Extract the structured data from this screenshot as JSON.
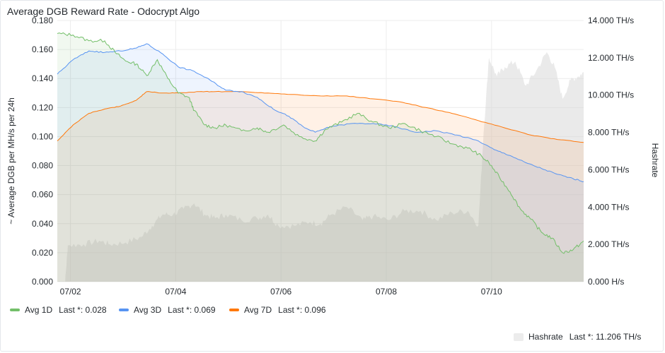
{
  "panel": {
    "title": "Average DGB Reward Rate - Odocrypt Algo"
  },
  "chart_data": {
    "type": "area",
    "title": "Average DGB Reward Rate - Odocrypt Algo",
    "ylabel": "~ Average DGB per MH/s per 24h",
    "y2label": "Hashrate",
    "ylim": [
      0,
      0.18
    ],
    "y2lim": [
      0,
      14
    ],
    "yticks": [
      "0.000",
      "0.020",
      "0.040",
      "0.060",
      "0.080",
      "0.100",
      "0.120",
      "0.140",
      "0.160",
      "0.180"
    ],
    "y2ticks": [
      "0.000 H/s",
      "2.000 TH/s",
      "4.000 TH/s",
      "6.000 TH/s",
      "8.000 TH/s",
      "10.000 TH/s",
      "12.000 TH/s",
      "14.000 TH/s"
    ],
    "xticks": [
      {
        "t": 0.25,
        "label": "07/02"
      },
      {
        "t": 2.25,
        "label": "07/04"
      },
      {
        "t": 4.25,
        "label": "07/06"
      },
      {
        "t": 6.25,
        "label": "07/08"
      },
      {
        "t": 8.25,
        "label": "07/10"
      }
    ],
    "xrange": [
      0,
      10.0
    ],
    "x_unit": "days from 07/01 18:00",
    "series": [
      {
        "name": "Avg 1D",
        "color": "#73bf69",
        "last_label": "Last *:",
        "last": "0.028",
        "points": [
          [
            0,
            0.171
          ],
          [
            0.3,
            0.17
          ],
          [
            0.6,
            0.166
          ],
          [
            0.9,
            0.166
          ],
          [
            1.1,
            0.158
          ],
          [
            1.3,
            0.152
          ],
          [
            1.5,
            0.15
          ],
          [
            1.7,
            0.142
          ],
          [
            1.9,
            0.153
          ],
          [
            2.1,
            0.14
          ],
          [
            2.3,
            0.13
          ],
          [
            2.5,
            0.127
          ],
          [
            2.6,
            0.118
          ],
          [
            2.8,
            0.108
          ],
          [
            3.0,
            0.106
          ],
          [
            3.2,
            0.108
          ],
          [
            3.5,
            0.104
          ],
          [
            3.8,
            0.106
          ],
          [
            4.0,
            0.103
          ],
          [
            4.3,
            0.108
          ],
          [
            4.6,
            0.1
          ],
          [
            4.9,
            0.097
          ],
          [
            5.1,
            0.105
          ],
          [
            5.4,
            0.11
          ],
          [
            5.7,
            0.116
          ],
          [
            6.0,
            0.11
          ],
          [
            6.3,
            0.106
          ],
          [
            6.6,
            0.109
          ],
          [
            6.9,
            0.104
          ],
          [
            7.2,
            0.1
          ],
          [
            7.5,
            0.095
          ],
          [
            7.8,
            0.092
          ],
          [
            8.0,
            0.088
          ],
          [
            8.2,
            0.082
          ],
          [
            8.4,
            0.072
          ],
          [
            8.6,
            0.062
          ],
          [
            8.8,
            0.05
          ],
          [
            9.0,
            0.043
          ],
          [
            9.2,
            0.034
          ],
          [
            9.4,
            0.03
          ],
          [
            9.6,
            0.02
          ],
          [
            9.8,
            0.022
          ],
          [
            10.0,
            0.028
          ]
        ]
      },
      {
        "name": "Avg 3D",
        "color": "#5794f2",
        "last_label": "Last *:",
        "last": "0.069",
        "points": [
          [
            0,
            0.143
          ],
          [
            0.3,
            0.153
          ],
          [
            0.6,
            0.159
          ],
          [
            0.9,
            0.158
          ],
          [
            1.2,
            0.159
          ],
          [
            1.5,
            0.161
          ],
          [
            1.7,
            0.164
          ],
          [
            2.0,
            0.157
          ],
          [
            2.3,
            0.148
          ],
          [
            2.6,
            0.145
          ],
          [
            2.9,
            0.139
          ],
          [
            3.2,
            0.132
          ],
          [
            3.5,
            0.131
          ],
          [
            3.8,
            0.127
          ],
          [
            4.1,
            0.119
          ],
          [
            4.4,
            0.114
          ],
          [
            4.7,
            0.106
          ],
          [
            4.9,
            0.103
          ],
          [
            5.2,
            0.107
          ],
          [
            5.6,
            0.109
          ],
          [
            6.0,
            0.109
          ],
          [
            6.4,
            0.107
          ],
          [
            6.8,
            0.103
          ],
          [
            7.2,
            0.104
          ],
          [
            7.6,
            0.101
          ],
          [
            8.0,
            0.097
          ],
          [
            8.3,
            0.091
          ],
          [
            8.6,
            0.087
          ],
          [
            8.9,
            0.082
          ],
          [
            9.2,
            0.078
          ],
          [
            9.5,
            0.074
          ],
          [
            9.8,
            0.071
          ],
          [
            10.0,
            0.069
          ]
        ]
      },
      {
        "name": "Avg 7D",
        "color": "#ff780a",
        "last_label": "Last *:",
        "last": "0.096",
        "points": [
          [
            0,
            0.097
          ],
          [
            0.3,
            0.108
          ],
          [
            0.6,
            0.116
          ],
          [
            0.9,
            0.119
          ],
          [
            1.2,
            0.121
          ],
          [
            1.5,
            0.125
          ],
          [
            1.7,
            0.131
          ],
          [
            2.0,
            0.13
          ],
          [
            2.3,
            0.13
          ],
          [
            2.7,
            0.131
          ],
          [
            3.0,
            0.131
          ],
          [
            3.5,
            0.131
          ],
          [
            4.0,
            0.13
          ],
          [
            4.5,
            0.129
          ],
          [
            5.0,
            0.128
          ],
          [
            5.5,
            0.128
          ],
          [
            6.0,
            0.126
          ],
          [
            6.5,
            0.124
          ],
          [
            7.0,
            0.12
          ],
          [
            7.5,
            0.116
          ],
          [
            8.0,
            0.111
          ],
          [
            8.5,
            0.106
          ],
          [
            9.0,
            0.101
          ],
          [
            9.5,
            0.098
          ],
          [
            10.0,
            0.096
          ]
        ]
      },
      {
        "name": "Hashrate",
        "color": "#e6e6e6",
        "last_label": "Last *:",
        "last": "11.206 TH/s",
        "axis": "right",
        "unit": "TH/s",
        "points": [
          [
            0,
            0
          ],
          [
            0.15,
            0
          ],
          [
            0.2,
            1.95
          ],
          [
            0.5,
            2.0
          ],
          [
            0.8,
            2.2
          ],
          [
            1.0,
            2.0
          ],
          [
            1.3,
            2.1
          ],
          [
            1.6,
            2.4
          ],
          [
            1.8,
            3.0
          ],
          [
            2.0,
            3.6
          ],
          [
            2.2,
            3.6
          ],
          [
            2.4,
            3.9
          ],
          [
            2.6,
            4.2
          ],
          [
            2.8,
            3.6
          ],
          [
            3.0,
            3.4
          ],
          [
            3.2,
            3.6
          ],
          [
            3.5,
            3.3
          ],
          [
            3.8,
            3.4
          ],
          [
            4.0,
            3.6
          ],
          [
            4.2,
            3.0
          ],
          [
            4.5,
            3.0
          ],
          [
            4.8,
            3.2
          ],
          [
            5.0,
            3.1
          ],
          [
            5.2,
            3.6
          ],
          [
            5.5,
            4.0
          ],
          [
            5.8,
            3.3
          ],
          [
            6.0,
            3.5
          ],
          [
            6.3,
            3.3
          ],
          [
            6.6,
            3.8
          ],
          [
            6.9,
            3.8
          ],
          [
            7.2,
            3.3
          ],
          [
            7.5,
            3.7
          ],
          [
            7.8,
            3.8
          ],
          [
            8.0,
            3.0
          ],
          [
            8.1,
            8.0
          ],
          [
            8.2,
            12.0
          ],
          [
            8.35,
            11.0
          ],
          [
            8.5,
            11.5
          ],
          [
            8.7,
            11.8
          ],
          [
            8.9,
            10.5
          ],
          [
            9.1,
            11.3
          ],
          [
            9.3,
            12.3
          ],
          [
            9.45,
            11.5
          ],
          [
            9.6,
            9.8
          ],
          [
            9.75,
            10.8
          ],
          [
            9.9,
            11.0
          ],
          [
            10.0,
            11.206
          ]
        ]
      }
    ],
    "legend_position": "bottom-left",
    "grid": true
  }
}
